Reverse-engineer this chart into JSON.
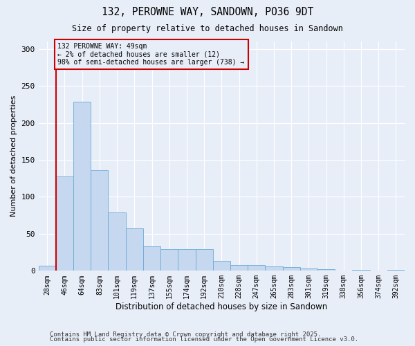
{
  "title": "132, PEROWNE WAY, SANDOWN, PO36 9DT",
  "subtitle": "Size of property relative to detached houses in Sandown",
  "xlabel": "Distribution of detached houses by size in Sandown",
  "ylabel": "Number of detached properties",
  "bar_color": "#c5d8ef",
  "bar_edge_color": "#6aaad4",
  "background_color": "#e8eef8",
  "grid_color": "#ffffff",
  "annotation_box_color": "#cc0000",
  "vline_color": "#cc0000",
  "annotation_text": "132 PEROWNE WAY: 49sqm\n← 2% of detached houses are smaller (12)\n98% of semi-detached houses are larger (738) →",
  "footer1": "Contains HM Land Registry data © Crown copyright and database right 2025.",
  "footer2": "Contains public sector information licensed under the Open Government Licence v3.0.",
  "categories": [
    "28sqm",
    "46sqm",
    "64sqm",
    "83sqm",
    "101sqm",
    "119sqm",
    "137sqm",
    "155sqm",
    "174sqm",
    "192sqm",
    "210sqm",
    "228sqm",
    "247sqm",
    "265sqm",
    "283sqm",
    "301sqm",
    "319sqm",
    "338sqm",
    "356sqm",
    "374sqm",
    "392sqm"
  ],
  "values": [
    7,
    128,
    229,
    136,
    79,
    57,
    33,
    29,
    29,
    29,
    13,
    8,
    8,
    6,
    5,
    3,
    2,
    0,
    1,
    0,
    1
  ],
  "ylim": [
    0,
    310
  ],
  "yticks": [
    0,
    50,
    100,
    150,
    200,
    250,
    300
  ]
}
